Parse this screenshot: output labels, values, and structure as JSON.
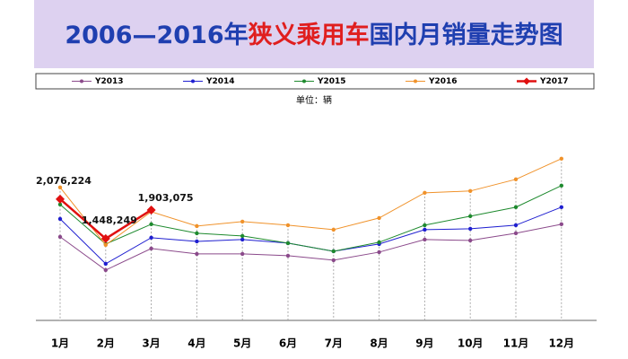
{
  "chart_data": {
    "type": "line",
    "title_parts": [
      "2006—2016年",
      "狭义乘用车",
      "国内月销量走势图"
    ],
    "unit_label": "单位：辆",
    "categories": [
      "1月",
      "2月",
      "3月",
      "4月",
      "5月",
      "6月",
      "7月",
      "8月",
      "9月",
      "10月",
      "11月",
      "12月"
    ],
    "series": [
      {
        "name": "Y2013",
        "color": "#8b4a8b",
        "marker": "circle",
        "values": [
          1477000,
          949000,
          1291000,
          1206000,
          1206000,
          1177000,
          1106000,
          1234000,
          1434000,
          1420000,
          1534000,
          1677000
        ]
      },
      {
        "name": "Y2014",
        "color": "#1f1fd0",
        "marker": "circle",
        "values": [
          1762000,
          1049000,
          1463000,
          1405000,
          1434000,
          1377000,
          1248000,
          1363000,
          1591000,
          1605000,
          1662000,
          1948000
        ]
      },
      {
        "name": "Y2015",
        "color": "#1e8a2e",
        "marker": "circle",
        "values": [
          1991000,
          1363000,
          1677000,
          1534000,
          1491000,
          1377000,
          1248000,
          1391000,
          1662000,
          1805000,
          1948000,
          2290000
        ]
      },
      {
        "name": "Y2016",
        "color": "#f0922a",
        "marker": "circle",
        "values": [
          2262000,
          1348000,
          1876000,
          1648000,
          1719000,
          1662000,
          1591000,
          1776000,
          2176000,
          2205000,
          2390000,
          2718000
        ]
      },
      {
        "name": "Y2017",
        "color": "#e01010",
        "marker": "diamond",
        "values": [
          2076224,
          1448249,
          1903075,
          null,
          null,
          null,
          null,
          null,
          null,
          null,
          null,
          null
        ],
        "value_labels": [
          "2,076,224",
          "1,448,249",
          "1,903,075",
          null,
          null,
          null,
          null,
          null,
          null,
          null,
          null,
          null
        ]
      }
    ],
    "ylim": [
      150000,
      3100000
    ]
  }
}
